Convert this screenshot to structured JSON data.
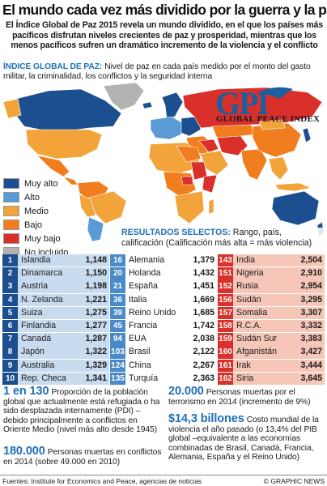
{
  "header": {
    "title": "El mundo cada vez más dividido por la guerra y la paz",
    "intro": "El Índice Global de Paz 2015 revela un mundo dividido, en el que los países más pacíficos disfrutan niveles crecientes de paz y prosperidad, mientras que los menos pacíficos sufren un dramático incremento de la violencia y el conflicto",
    "index_label": "Índice Global de Paz:",
    "index_text": "Nivel de paz en cada país medido por el monto del gasto militar, la criminalidad, los conflictos y la seguridad interna"
  },
  "logo": {
    "mark": "GPI",
    "name": "GLOBAL PEACE INDEX"
  },
  "legend": [
    {
      "label": "Muy alto",
      "color": "#1b4f8f"
    },
    {
      "label": "Alto",
      "color": "#5b9bd5"
    },
    {
      "label": "Medio",
      "color": "#f2a43a"
    },
    {
      "label": "Bajo",
      "color": "#f07d1e"
    },
    {
      "label": "Muy bajo",
      "color": "#d9302b"
    },
    {
      "label": "No incluido",
      "color": "#b3b3b3"
    }
  ],
  "results": {
    "label": "Resultados selectos:",
    "text": "Rango, país, calificación (Calificación más alta = más violencia)",
    "columns": [
      [
        {
          "rank": "1",
          "country": "Islandia",
          "score": "1,148"
        },
        {
          "rank": "2",
          "country": "Dinamarca",
          "score": "1,150"
        },
        {
          "rank": "3",
          "country": "Austria",
          "score": "1,198"
        },
        {
          "rank": "4",
          "country": "N. Zelanda",
          "score": "1,221"
        },
        {
          "rank": "5",
          "country": "Suiza",
          "score": "1,275"
        },
        {
          "rank": "6",
          "country": "Finlandia",
          "score": "1,277"
        },
        {
          "rank": "7",
          "country": "Canadá",
          "score": "1,287"
        },
        {
          "rank": "8",
          "country": "Japón",
          "score": "1,322"
        },
        {
          "rank": "9",
          "country": "Australia",
          "score": "1,329"
        },
        {
          "rank": "10",
          "country": "Rep. Checa",
          "score": "1,341"
        }
      ],
      [
        {
          "rank": "16",
          "country": "Alemania",
          "score": "1,379"
        },
        {
          "rank": "20",
          "country": "Holanda",
          "score": "1,432"
        },
        {
          "rank": "21",
          "country": "España",
          "score": "1,451"
        },
        {
          "rank": "36",
          "country": "Italia",
          "score": "1,669"
        },
        {
          "rank": "39",
          "country": "Reino Unido",
          "score": "1,685"
        },
        {
          "rank": "45",
          "country": "Francia",
          "score": "1,742"
        },
        {
          "rank": "94",
          "country": "EUA",
          "score": "2,038"
        },
        {
          "rank": "103",
          "country": "Brasil",
          "score": "2,122"
        },
        {
          "rank": "124",
          "country": "China",
          "score": "2,267"
        },
        {
          "rank": "135",
          "country": "Turquía",
          "score": "2,363"
        }
      ],
      [
        {
          "rank": "143",
          "country": "India",
          "score": "2,504"
        },
        {
          "rank": "151",
          "country": "Nigeria",
          "score": "2,910"
        },
        {
          "rank": "152",
          "country": "Rusia",
          "score": "2,954"
        },
        {
          "rank": "156",
          "country": "Sudán",
          "score": "3,295"
        },
        {
          "rank": "157",
          "country": "Somalia",
          "score": "3,307"
        },
        {
          "rank": "158",
          "country": "R.C.A.",
          "score": "3,332"
        },
        {
          "rank": "159",
          "country": "Sudán Sur",
          "score": "3,383"
        },
        {
          "rank": "160",
          "country": "Afganistán",
          "score": "3,427"
        },
        {
          "rank": "161",
          "country": "Irak",
          "score": "3,444"
        },
        {
          "rank": "162",
          "country": "Siria",
          "score": "3,645"
        }
      ]
    ]
  },
  "facts": {
    "refugees_big": "1 en 130",
    "refugees_text": "Proporción de la población global que actualmente está refugiada o ha sido desplazada internamente (PDI) –debido principalmente a conflictos en Oriente Medio (nivel más alto desde 1945)",
    "deaths_big": "180.000",
    "deaths_text": "Personas muertas en conflictos en 2014 (sobre 49.000 en 2010)",
    "terror_big": "20.000",
    "terror_text": "Personas muertas por el terrorismo en 2014 (incremento de 9%)",
    "cost_big": "$14,3 billones",
    "cost_text": "Costo mundial de la violencia el año pasado (o 13,4% del PIB global –equivalente a las economías combinadas de Brasil, Canadá, Francia, Alemania, España y el Reino Unido)"
  },
  "footer": {
    "source": "Fuentes: Institute for Economics and Peace, agencias de noticias",
    "credit": "© GRAPHIC NEWS"
  }
}
